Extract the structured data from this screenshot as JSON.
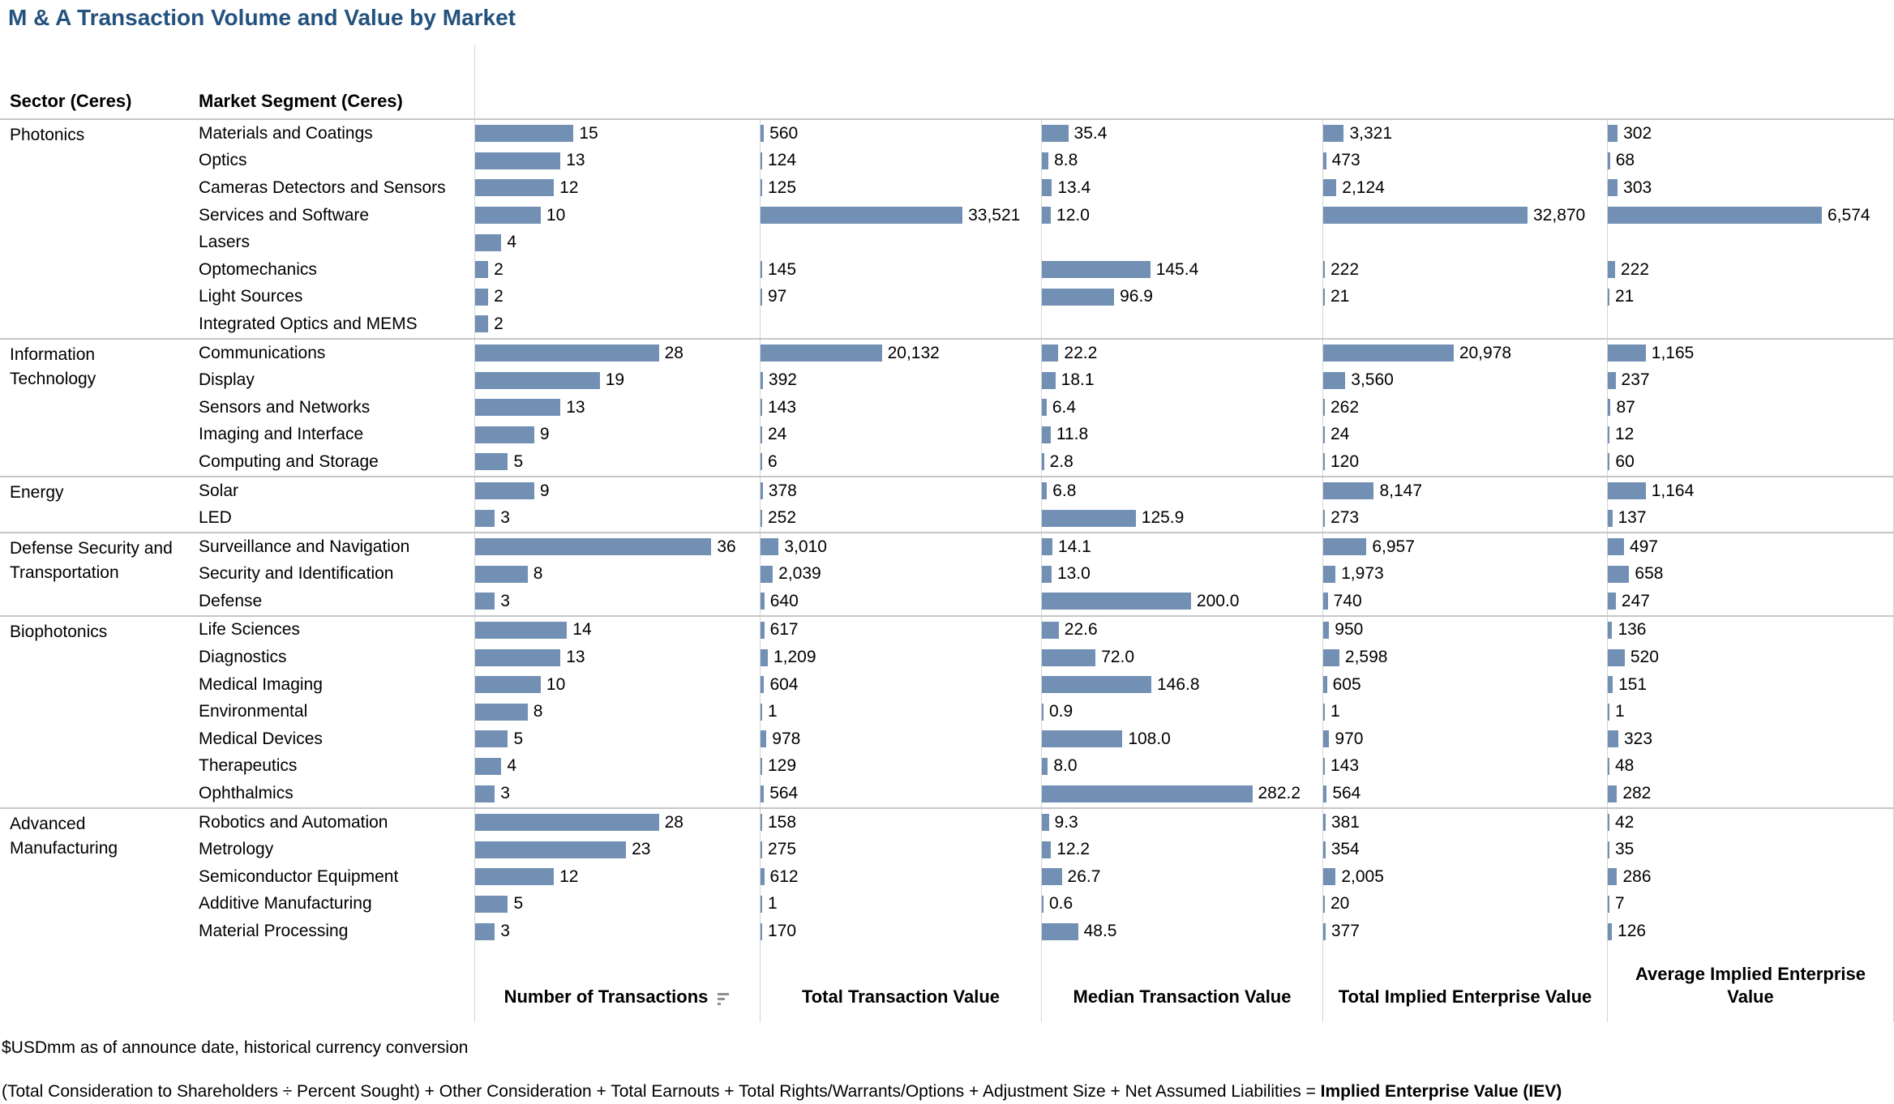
{
  "title": "M & A Transaction Volume and Value by Market",
  "colors": {
    "title": "#24527E",
    "bar": "#7290B3",
    "grid_light": "#d4d4d4",
    "grid_group": "#c6c6c6"
  },
  "columns": {
    "sector_header": "Sector (Ceres)",
    "segment_header": "Market Segment (Ceres)",
    "measures": [
      "Number of Transactions",
      "Total Transaction Value",
      "Median Transaction Value",
      "Total Implied Enterprise Value",
      "Average Implied Enterprise Value"
    ]
  },
  "icons": {
    "sort_descending": "sort-descending-bars"
  },
  "footnotes": {
    "currency_note": "$USDmm as of announce date, historical currency conversion",
    "formula": "(Total Consideration to Shareholders ÷ Percent Sought) + Other Consideration + Total Earnouts + Total Rights/Warrants/Options + Adjustment Size + Net Assumed Liabilities = ",
    "formula_result": "Implied Enterprise Value (IEV)"
  },
  "chart_data": {
    "type": "bar",
    "orientation": "horizontal",
    "unit_note": "$USDmm",
    "series_names": [
      "Number of Transactions",
      "Total Transaction Value",
      "Median Transaction Value",
      "Total Implied Enterprise Value",
      "Average Implied Enterprise Value"
    ],
    "axis_max": [
      36,
      33521,
      282.2,
      32870,
      6574
    ],
    "legend": "none",
    "grid": "column-separators-only",
    "groups": [
      {
        "sector": "Photonics",
        "rows": [
          {
            "segment": "Materials and Coatings",
            "values": [
              15,
              560,
              35.4,
              3321,
              302
            ]
          },
          {
            "segment": "Optics",
            "values": [
              13,
              124,
              8.8,
              473,
              68
            ]
          },
          {
            "segment": "Cameras Detectors and Sensors",
            "values": [
              12,
              125,
              13.4,
              2124,
              303
            ]
          },
          {
            "segment": "Services and Software",
            "values": [
              10,
              33521,
              12.0,
              32870,
              6574
            ]
          },
          {
            "segment": "Lasers",
            "values": [
              4,
              null,
              null,
              null,
              null
            ]
          },
          {
            "segment": "Optomechanics",
            "values": [
              2,
              145,
              145.4,
              222,
              222
            ]
          },
          {
            "segment": "Light Sources",
            "values": [
              2,
              97,
              96.9,
              21,
              21
            ]
          },
          {
            "segment": "Integrated Optics and MEMS",
            "values": [
              2,
              null,
              null,
              null,
              null
            ]
          }
        ]
      },
      {
        "sector": "Information Technology",
        "rows": [
          {
            "segment": "Communications",
            "values": [
              28,
              20132,
              22.2,
              20978,
              1165
            ]
          },
          {
            "segment": "Display",
            "values": [
              19,
              392,
              18.1,
              3560,
              237
            ]
          },
          {
            "segment": "Sensors and Networks",
            "values": [
              13,
              143,
              6.4,
              262,
              87
            ]
          },
          {
            "segment": "Imaging and Interface",
            "values": [
              9,
              24,
              11.8,
              24,
              12
            ]
          },
          {
            "segment": "Computing and Storage",
            "values": [
              5,
              6,
              2.8,
              120,
              60
            ]
          }
        ]
      },
      {
        "sector": "Energy",
        "rows": [
          {
            "segment": "Solar",
            "values": [
              9,
              378,
              6.8,
              8147,
              1164
            ]
          },
          {
            "segment": "LED",
            "values": [
              3,
              252,
              125.9,
              273,
              137
            ]
          }
        ]
      },
      {
        "sector": "Defense Security and Transportation",
        "rows": [
          {
            "segment": "Surveillance and Navigation",
            "values": [
              36,
              3010,
              14.1,
              6957,
              497
            ]
          },
          {
            "segment": "Security and Identification",
            "values": [
              8,
              2039,
              13.0,
              1973,
              658
            ]
          },
          {
            "segment": "Defense",
            "values": [
              3,
              640,
              200.0,
              740,
              247
            ]
          }
        ]
      },
      {
        "sector": "Biophotonics",
        "rows": [
          {
            "segment": "Life Sciences",
            "values": [
              14,
              617,
              22.6,
              950,
              136
            ]
          },
          {
            "segment": "Diagnostics",
            "values": [
              13,
              1209,
              72.0,
              2598,
              520
            ]
          },
          {
            "segment": "Medical Imaging",
            "values": [
              10,
              604,
              146.8,
              605,
              151
            ]
          },
          {
            "segment": "Environmental",
            "values": [
              8,
              1,
              0.9,
              1,
              1
            ]
          },
          {
            "segment": "Medical Devices",
            "values": [
              5,
              978,
              108.0,
              970,
              323
            ]
          },
          {
            "segment": "Therapeutics",
            "values": [
              4,
              129,
              8.0,
              143,
              48
            ]
          },
          {
            "segment": "Ophthalmics",
            "values": [
              3,
              564,
              282.2,
              564,
              282
            ]
          }
        ]
      },
      {
        "sector": "Advanced Manufacturing",
        "rows": [
          {
            "segment": "Robotics and Automation",
            "values": [
              28,
              158,
              9.3,
              381,
              42
            ]
          },
          {
            "segment": "Metrology",
            "values": [
              23,
              275,
              12.2,
              354,
              35
            ]
          },
          {
            "segment": "Semiconductor Equipment",
            "values": [
              12,
              612,
              26.7,
              2005,
              286
            ]
          },
          {
            "segment": "Additive Manufacturing",
            "values": [
              5,
              1,
              0.6,
              20,
              7
            ]
          },
          {
            "segment": "Material Processing",
            "values": [
              3,
              170,
              48.5,
              377,
              126
            ]
          }
        ]
      }
    ]
  }
}
